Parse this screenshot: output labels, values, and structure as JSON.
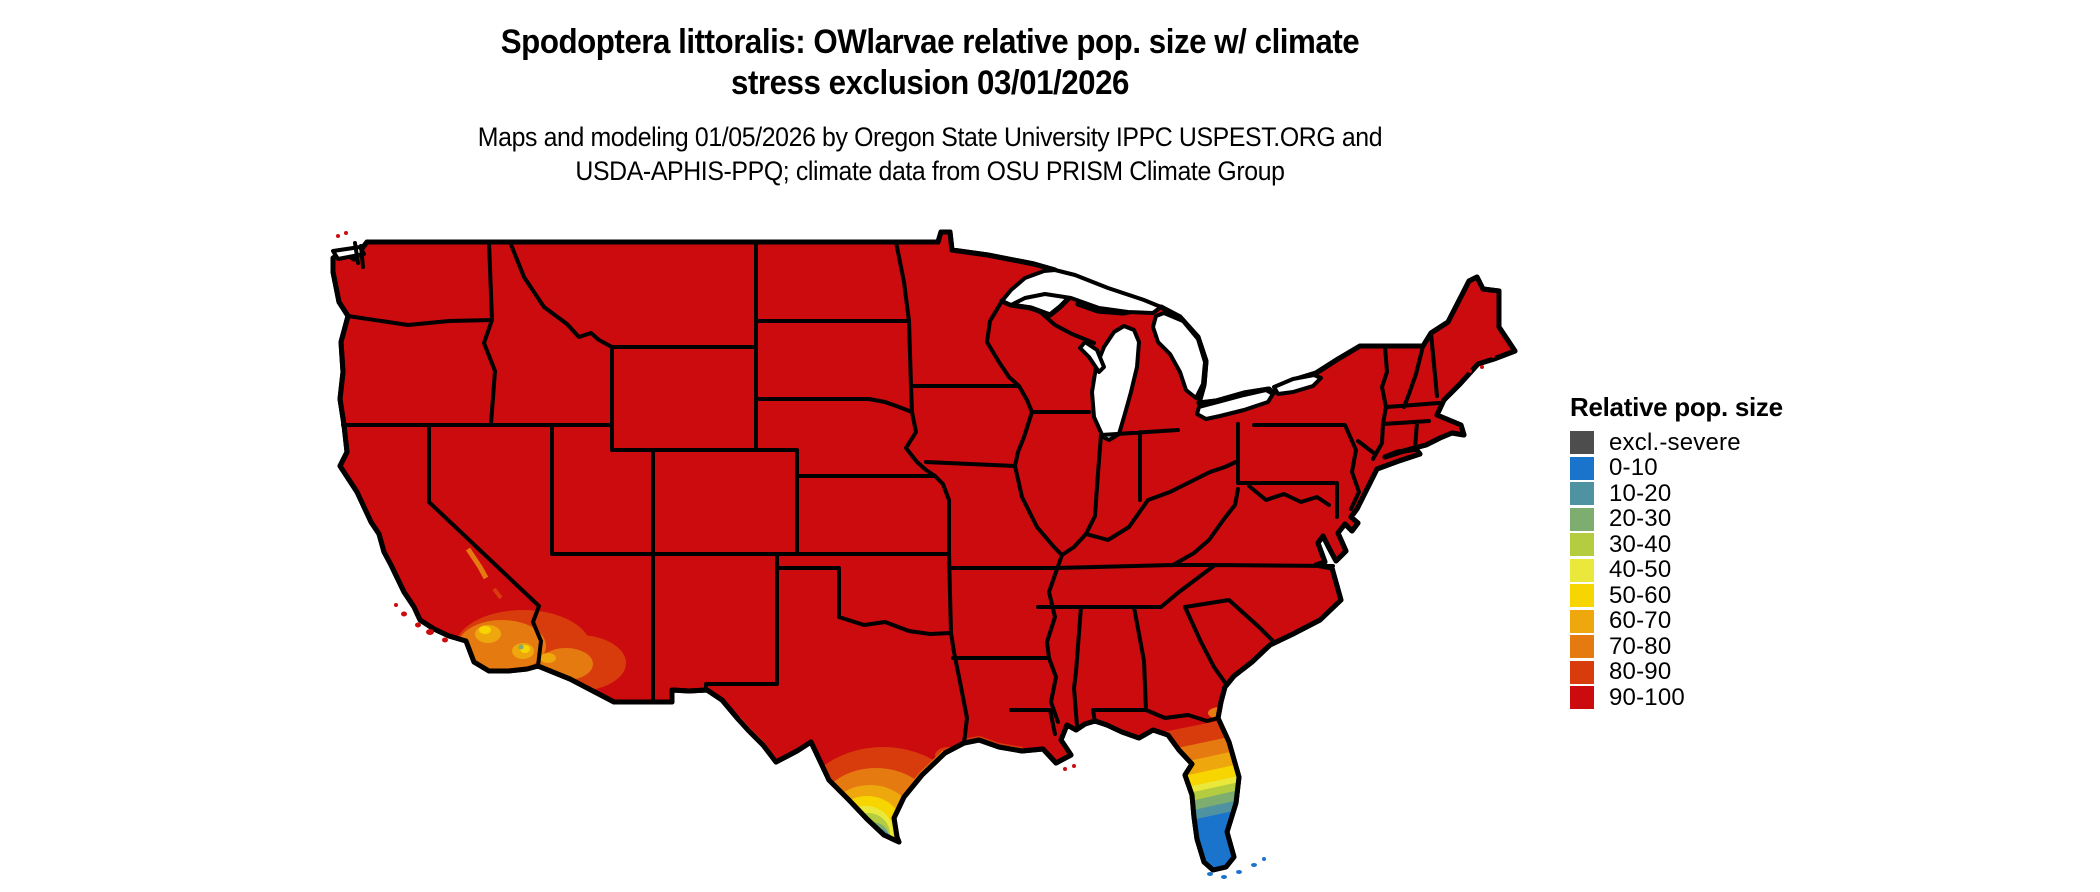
{
  "header": {
    "title_line1": "Spodoptera littoralis: OWlarvae relative pop. size w/ climate",
    "title_line2": "stress exclusion 03/01/2026",
    "subtitle_line1": "Maps and modeling 01/05/2026 by Oregon State University IPPC USPEST.ORG and",
    "subtitle_line2": "USDA-APHIS-PPQ; climate data from OSU PRISM Climate Group"
  },
  "map": {
    "region": "Continental United States",
    "base_color": "#cb0b0e",
    "border_color": "#000000",
    "water_color": "#ffffff",
    "hotspots": [
      "southern California / southwest Arizona",
      "southern Texas",
      "Florida peninsula"
    ]
  },
  "legend": {
    "title": "Relative pop. size",
    "items": [
      {
        "label": "excl.-severe",
        "color": "#4d4d4d"
      },
      {
        "label": "0-10",
        "color": "#1b74cc"
      },
      {
        "label": "10-20",
        "color": "#4f92a2"
      },
      {
        "label": "20-30",
        "color": "#7ead70"
      },
      {
        "label": "30-40",
        "color": "#b4cc40"
      },
      {
        "label": "40-50",
        "color": "#eae93b"
      },
      {
        "label": "50-60",
        "color": "#f6d500"
      },
      {
        "label": "60-70",
        "color": "#efa70e"
      },
      {
        "label": "70-80",
        "color": "#e57a10"
      },
      {
        "label": "80-90",
        "color": "#d83c0d"
      },
      {
        "label": "90-100",
        "color": "#cb0b0e"
      }
    ]
  }
}
